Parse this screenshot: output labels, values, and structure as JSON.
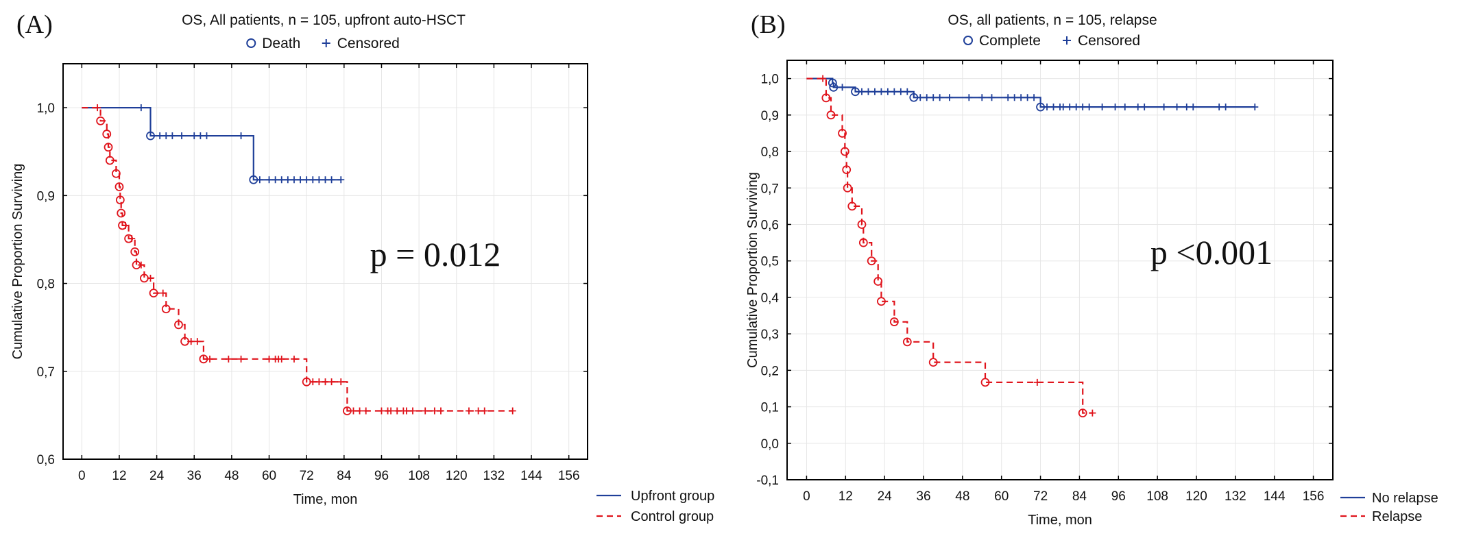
{
  "colors": {
    "blue": "#1f3f99",
    "red": "#e0141c",
    "grid": "#e6e6e6",
    "axis": "#000000"
  },
  "chart_data": [
    {
      "panel_label": "(A)",
      "type": "line",
      "subtype": "kaplan-meier",
      "title": "OS, All patients, n = 105, upfront auto-HSCT",
      "xlabel": "Time, mon",
      "ylabel": "Cumulative Proportion Surviving",
      "xlim": [
        -6,
        162
      ],
      "ylim": [
        0.6,
        1.05
      ],
      "xticks": [
        0,
        12,
        24,
        36,
        48,
        60,
        72,
        84,
        96,
        108,
        120,
        132,
        144,
        156
      ],
      "xtick_labels": [
        "0",
        "12",
        "24",
        "36",
        "48",
        "60",
        "72",
        "84",
        "96",
        "108",
        "120",
        "132",
        "144",
        "156"
      ],
      "yticks": [
        0.6,
        0.7,
        0.8,
        0.9,
        1.0
      ],
      "ytick_labels": [
        "0,6",
        "0,7",
        "0,8",
        "0,9",
        "1,0"
      ],
      "grid": true,
      "marker_legend": [
        {
          "symbol": "circle",
          "label": "Death"
        },
        {
          "symbol": "plus",
          "label": "Censored"
        }
      ],
      "legend_position": "bottom-right",
      "annotation": "p = 0.012",
      "series": [
        {
          "name": "Upfront group",
          "color_key": "blue",
          "dash": false,
          "steps": [
            [
              0,
              1.0
            ],
            [
              22,
              0.968
            ],
            [
              55,
              0.918
            ],
            [
              83,
              0.918
            ]
          ],
          "events": [
            [
              22,
              0.968
            ],
            [
              55,
              0.918
            ]
          ],
          "censored": [
            [
              19,
              1.0
            ],
            [
              25,
              0.968
            ],
            [
              27,
              0.968
            ],
            [
              29,
              0.968
            ],
            [
              32,
              0.968
            ],
            [
              36,
              0.968
            ],
            [
              38,
              0.968
            ],
            [
              40,
              0.968
            ],
            [
              51,
              0.968
            ],
            [
              57,
              0.918
            ],
            [
              60,
              0.918
            ],
            [
              62,
              0.918
            ],
            [
              64,
              0.918
            ],
            [
              66,
              0.918
            ],
            [
              68,
              0.918
            ],
            [
              70,
              0.918
            ],
            [
              72,
              0.918
            ],
            [
              74,
              0.918
            ],
            [
              76,
              0.918
            ],
            [
              78,
              0.918
            ],
            [
              80,
              0.918
            ],
            [
              83,
              0.918
            ]
          ]
        },
        {
          "name": "Control group",
          "color_key": "red",
          "dash": true,
          "steps": [
            [
              0,
              1.0
            ],
            [
              6,
              0.985
            ],
            [
              8,
              0.97
            ],
            [
              8.5,
              0.955
            ],
            [
              9,
              0.94
            ],
            [
              11,
              0.925
            ],
            [
              12,
              0.91
            ],
            [
              12.3,
              0.895
            ],
            [
              12.6,
              0.88
            ],
            [
              13,
              0.866
            ],
            [
              15,
              0.851
            ],
            [
              17,
              0.836
            ],
            [
              17.5,
              0.821
            ],
            [
              20,
              0.806
            ],
            [
              23,
              0.789
            ],
            [
              27,
              0.771
            ],
            [
              31,
              0.753
            ],
            [
              33,
              0.734
            ],
            [
              39,
              0.714
            ],
            [
              72,
              0.688
            ],
            [
              85,
              0.655
            ],
            [
              138,
              0.655
            ]
          ],
          "events": [
            [
              6,
              0.985
            ],
            [
              8,
              0.97
            ],
            [
              8.5,
              0.955
            ],
            [
              9,
              0.94
            ],
            [
              11,
              0.925
            ],
            [
              12,
              0.91
            ],
            [
              12.3,
              0.895
            ],
            [
              12.6,
              0.88
            ],
            [
              13,
              0.866
            ],
            [
              15,
              0.851
            ],
            [
              17,
              0.836
            ],
            [
              17.5,
              0.821
            ],
            [
              20,
              0.806
            ],
            [
              23,
              0.789
            ],
            [
              27,
              0.771
            ],
            [
              31,
              0.753
            ],
            [
              33,
              0.734
            ],
            [
              39,
              0.714
            ],
            [
              72,
              0.688
            ],
            [
              85,
              0.655
            ]
          ],
          "censored": [
            [
              5,
              1.0
            ],
            [
              14,
              0.866
            ],
            [
              16,
              0.851
            ],
            [
              19,
              0.821
            ],
            [
              22,
              0.806
            ],
            [
              26,
              0.789
            ],
            [
              35,
              0.734
            ],
            [
              37,
              0.734
            ],
            [
              41,
              0.714
            ],
            [
              47,
              0.714
            ],
            [
              51,
              0.714
            ],
            [
              60,
              0.714
            ],
            [
              62,
              0.714
            ],
            [
              63,
              0.714
            ],
            [
              64,
              0.714
            ],
            [
              68,
              0.714
            ],
            [
              74,
              0.688
            ],
            [
              76,
              0.688
            ],
            [
              78,
              0.688
            ],
            [
              80,
              0.688
            ],
            [
              83,
              0.688
            ],
            [
              87,
              0.655
            ],
            [
              89,
              0.655
            ],
            [
              91,
              0.655
            ],
            [
              96,
              0.655
            ],
            [
              98,
              0.655
            ],
            [
              99,
              0.655
            ],
            [
              101,
              0.655
            ],
            [
              103,
              0.655
            ],
            [
              104,
              0.655
            ],
            [
              106,
              0.655
            ],
            [
              110,
              0.655
            ],
            [
              113,
              0.655
            ],
            [
              115,
              0.655
            ],
            [
              124,
              0.655
            ],
            [
              127,
              0.655
            ],
            [
              129,
              0.655
            ],
            [
              138,
              0.655
            ]
          ]
        }
      ]
    },
    {
      "panel_label": "(B)",
      "type": "line",
      "subtype": "kaplan-meier",
      "title": "OS, all patients, n = 105, relapse",
      "xlabel": "Time, mon",
      "ylabel": "Cumulative Proportion Surviving",
      "xlim": [
        -6,
        162
      ],
      "ylim": [
        -0.1,
        1.05
      ],
      "xticks": [
        0,
        12,
        24,
        36,
        48,
        60,
        72,
        84,
        96,
        108,
        120,
        132,
        144,
        156
      ],
      "xtick_labels": [
        "0",
        "12",
        "24",
        "36",
        "48",
        "60",
        "72",
        "84",
        "96",
        "108",
        "120",
        "132",
        "144",
        "156"
      ],
      "yticks": [
        -0.1,
        0.0,
        0.1,
        0.2,
        0.3,
        0.4,
        0.5,
        0.6,
        0.7,
        0.8,
        0.9,
        1.0
      ],
      "ytick_labels": [
        "-0,1",
        "0,0",
        "0,1",
        "0,2",
        "0,3",
        "0,4",
        "0,5",
        "0,6",
        "0,7",
        "0,8",
        "0,9",
        "1,0"
      ],
      "grid": true,
      "marker_legend": [
        {
          "symbol": "circle",
          "label": "Complete"
        },
        {
          "symbol": "plus",
          "label": "Censored"
        }
      ],
      "legend_position": "bottom-right",
      "annotation": "p <0.001",
      "series": [
        {
          "name": "No relapse",
          "color_key": "blue",
          "dash": false,
          "steps": [
            [
              0,
              1.0
            ],
            [
              8,
              0.988
            ],
            [
              8.3,
              0.976
            ],
            [
              15,
              0.964
            ],
            [
              33,
              0.948
            ],
            [
              72,
              0.922
            ],
            [
              138,
              0.922
            ]
          ],
          "events": [
            [
              8,
              0.988
            ],
            [
              8.3,
              0.976
            ],
            [
              15,
              0.964
            ],
            [
              33,
              0.948
            ],
            [
              72,
              0.922
            ]
          ],
          "censored": [
            [
              11,
              0.976
            ],
            [
              17,
              0.964
            ],
            [
              19,
              0.964
            ],
            [
              21,
              0.964
            ],
            [
              23,
              0.964
            ],
            [
              25,
              0.964
            ],
            [
              27,
              0.964
            ],
            [
              29,
              0.964
            ],
            [
              31,
              0.964
            ],
            [
              35,
              0.948
            ],
            [
              37,
              0.948
            ],
            [
              39,
              0.948
            ],
            [
              41,
              0.948
            ],
            [
              44,
              0.948
            ],
            [
              50,
              0.948
            ],
            [
              54,
              0.948
            ],
            [
              57,
              0.948
            ],
            [
              62,
              0.948
            ],
            [
              64,
              0.948
            ],
            [
              66,
              0.948
            ],
            [
              68,
              0.948
            ],
            [
              70,
              0.948
            ],
            [
              74,
              0.922
            ],
            [
              76,
              0.922
            ],
            [
              78,
              0.922
            ],
            [
              79,
              0.922
            ],
            [
              81,
              0.922
            ],
            [
              83,
              0.922
            ],
            [
              85,
              0.922
            ],
            [
              87,
              0.922
            ],
            [
              91,
              0.922
            ],
            [
              95,
              0.922
            ],
            [
              98,
              0.922
            ],
            [
              102,
              0.922
            ],
            [
              104,
              0.922
            ],
            [
              110,
              0.922
            ],
            [
              114,
              0.922
            ],
            [
              117,
              0.922
            ],
            [
              119,
              0.922
            ],
            [
              127,
              0.922
            ],
            [
              129,
              0.922
            ],
            [
              138,
              0.922
            ]
          ]
        },
        {
          "name": "Relapse",
          "color_key": "red",
          "dash": true,
          "steps": [
            [
              0,
              1.0
            ],
            [
              6,
              0.947
            ],
            [
              7.5,
              0.9
            ],
            [
              11,
              0.85
            ],
            [
              11.8,
              0.8
            ],
            [
              12.3,
              0.75
            ],
            [
              12.6,
              0.7
            ],
            [
              14,
              0.65
            ],
            [
              17,
              0.6
            ],
            [
              17.5,
              0.55
            ],
            [
              20,
              0.5
            ],
            [
              22,
              0.444
            ],
            [
              23,
              0.389
            ],
            [
              27,
              0.333
            ],
            [
              31,
              0.278
            ],
            [
              39,
              0.222
            ],
            [
              55,
              0.167
            ],
            [
              85,
              0.083
            ],
            [
              88,
              0.083
            ]
          ],
          "events": [
            [
              6,
              0.947
            ],
            [
              7.5,
              0.9
            ],
            [
              11,
              0.85
            ],
            [
              11.8,
              0.8
            ],
            [
              12.3,
              0.75
            ],
            [
              12.6,
              0.7
            ],
            [
              14,
              0.65
            ],
            [
              17,
              0.6
            ],
            [
              17.5,
              0.55
            ],
            [
              20,
              0.5
            ],
            [
              22,
              0.444
            ],
            [
              23,
              0.389
            ],
            [
              27,
              0.333
            ],
            [
              31,
              0.278
            ],
            [
              39,
              0.222
            ],
            [
              55,
              0.167
            ],
            [
              85,
              0.083
            ]
          ],
          "censored": [
            [
              5,
              1.0
            ],
            [
              71,
              0.167
            ],
            [
              88,
              0.083
            ]
          ]
        }
      ]
    }
  ]
}
